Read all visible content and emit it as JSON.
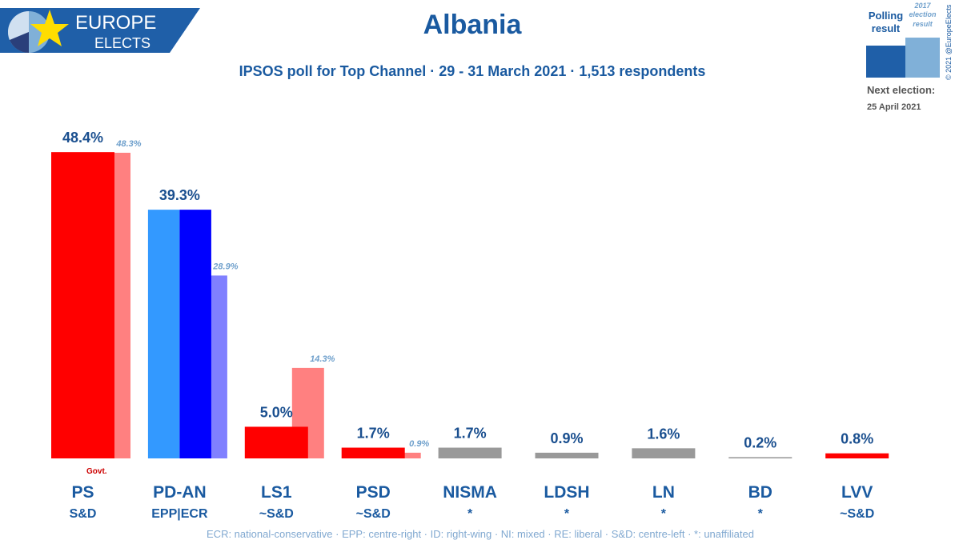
{
  "logo": {
    "line1": "EUROPE",
    "line2": "ELECTS"
  },
  "copyright": "© 2021 @EuropeElects",
  "next_election": {
    "label": "Next election:",
    "date": "25 April 2021"
  },
  "chart_data": {
    "type": "bar",
    "title": "Albania",
    "subtitle": "IPSOS poll for Top Channel · 29 - 31 March 2021 · 1,513 respondents",
    "categories": [
      "PS",
      "PD-AN",
      "LS1",
      "PSD",
      "NISMA",
      "LDSH",
      "LN",
      "BD",
      "LVV"
    ],
    "groups": [
      "S&D",
      "EPP|ECR",
      "~S&D",
      "~S&D",
      "*",
      "*",
      "*",
      "*",
      "~S&D"
    ],
    "annotation": "Govt.",
    "footnote": "ECR: national-conservative · EPP: centre-right · ID: right-wing · NI: mixed · RE: liberal · S&D: centre-left · *: unaffiliated",
    "ylim": [
      0,
      50
    ],
    "series": [
      {
        "name": "Polling result",
        "color": "#1f5fa8",
        "colors": [
          "#ff0000",
          [
            "#3399ff",
            "#0000ff"
          ],
          "#ff0000",
          "#ff0000",
          "#999999",
          "#999999",
          "#999999",
          "#999999",
          "#ff0000"
        ],
        "values": [
          48.4,
          39.3,
          5.0,
          1.7,
          1.7,
          0.9,
          1.6,
          0.2,
          0.8
        ],
        "value_labels": [
          "48.4%",
          "39.3%",
          "5.0%",
          "1.7%",
          "1.7%",
          "0.9%",
          "1.6%",
          "0.2%",
          "0.8%"
        ]
      },
      {
        "name": "2017 election result",
        "color": "#80b0d8",
        "colors": [
          "#ff8080",
          "#8080ff",
          "#ff8080",
          "#ff8080",
          null,
          null,
          null,
          null,
          null
        ],
        "values": [
          48.3,
          28.9,
          14.3,
          0.9,
          null,
          null,
          null,
          null,
          null
        ],
        "value_labels": [
          "48.3%",
          "28.9%",
          "14.3%",
          "0.9%",
          null,
          null,
          null,
          null,
          null
        ]
      }
    ]
  }
}
